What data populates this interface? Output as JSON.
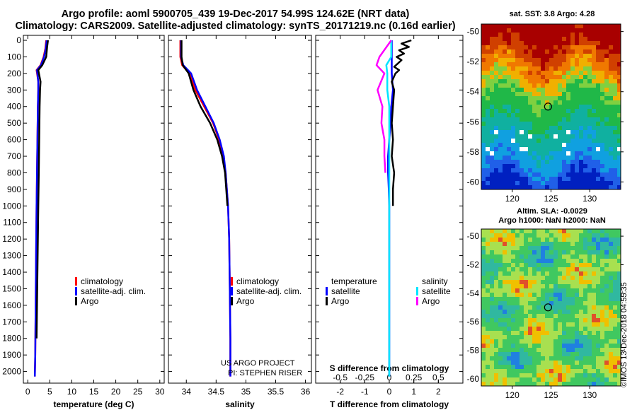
{
  "header": {
    "line1": "Argo profile: aoml 5900705_439 19-Dec-2017 54.99S 124.62E (NRT data)",
    "line2": "Climatology: CARS2009. Satellite-adjusted climatology: synTS_20171219.nc (0.16d earlier)"
  },
  "colors": {
    "climatology": "#ff0000",
    "satellite": "#0000ff",
    "argo": "#000000",
    "sat_salinity": "#00e5ff",
    "argo_salinity": "#ff00ff"
  },
  "legend": {
    "climatology": "climatology",
    "satellite": "satellite-adj. clim.",
    "argo": "Argo",
    "temperature": "temperature",
    "salinity": "salinity",
    "satellite_short": "satellite",
    "argo_short": "Argo"
  },
  "credits": {
    "project": "US ARGO PROJECT",
    "pi": "PI: STEPHEN RISER",
    "imos": "©IMOS 13-Dec-2018 04:55:35"
  },
  "chart_data": [
    {
      "type": "line",
      "title": "",
      "xlabel": "temperature (deg C)",
      "ylabel": "",
      "xlim": [
        -1,
        31
      ],
      "ylim": [
        2070,
        -30
      ],
      "xticks": [
        0,
        5,
        10,
        15,
        20,
        25,
        30
      ],
      "yticks": [
        0,
        100,
        200,
        300,
        400,
        500,
        600,
        700,
        800,
        900,
        1000,
        1100,
        1200,
        1300,
        1400,
        1500,
        1600,
        1700,
        1800,
        1900,
        2000
      ],
      "series": [
        {
          "name": "climatology",
          "color": "#ff0000",
          "x": [
            4.2,
            4.0,
            3.6,
            2.9,
            2.0,
            2.4,
            2.4,
            2.3,
            2.2,
            2.1,
            2.0,
            1.9,
            1.8,
            1.7,
            1.6
          ],
          "y": [
            0,
            50,
            100,
            150,
            180,
            250,
            300,
            400,
            600,
            800,
            1000,
            1300,
            1600,
            1900,
            2030
          ]
        },
        {
          "name": "satellite-adj. clim.",
          "color": "#0000ff",
          "x": [
            4.3,
            4.1,
            3.7,
            3.0,
            2.1,
            2.4,
            2.4,
            2.3,
            2.2,
            2.1,
            2.0,
            1.9,
            1.8,
            1.7,
            1.6
          ],
          "y": [
            0,
            50,
            100,
            150,
            180,
            250,
            300,
            400,
            600,
            800,
            1000,
            1300,
            1600,
            1900,
            2030
          ]
        },
        {
          "name": "Argo",
          "color": "#000000",
          "x": [
            4.6,
            4.4,
            4.2,
            3.3,
            2.4,
            2.9,
            2.8,
            2.7,
            2.6,
            2.5,
            2.4,
            2.3,
            2.2,
            2.1,
            2.0
          ],
          "y": [
            0,
            40,
            100,
            150,
            180,
            250,
            300,
            400,
            600,
            800,
            1000,
            1200,
            1400,
            1600,
            1800
          ]
        }
      ]
    },
    {
      "type": "line",
      "title": "",
      "xlabel": "salinity",
      "ylabel": "",
      "xlim": [
        33.7,
        36.1
      ],
      "ylim": [
        2070,
        -30
      ],
      "xticks": [
        34,
        34.5,
        35,
        35.5,
        36
      ],
      "series": [
        {
          "name": "climatology",
          "color": "#ff0000",
          "x": [
            33.9,
            33.9,
            33.93,
            34.05,
            34.15,
            34.3,
            34.45,
            34.55,
            34.62,
            34.66,
            34.7,
            34.72,
            34.73,
            34.74,
            34.74
          ],
          "y": [
            0,
            100,
            150,
            200,
            300,
            400,
            500,
            600,
            700,
            800,
            1000,
            1200,
            1500,
            1800,
            2030
          ]
        },
        {
          "name": "satellite-adj. clim.",
          "color": "#0000ff",
          "x": [
            33.91,
            33.91,
            33.95,
            34.08,
            34.18,
            34.32,
            34.46,
            34.56,
            34.63,
            34.66,
            34.7,
            34.72,
            34.73,
            34.74,
            34.74
          ],
          "y": [
            0,
            100,
            150,
            200,
            300,
            400,
            500,
            600,
            700,
            800,
            1000,
            1200,
            1500,
            1800,
            2030
          ]
        },
        {
          "name": "Argo",
          "color": "#000000",
          "x": [
            33.92,
            33.92,
            33.94,
            34.04,
            34.12,
            34.24,
            34.4,
            34.52,
            34.6,
            34.65,
            34.69
          ],
          "y": [
            0,
            100,
            150,
            200,
            300,
            400,
            500,
            600,
            700,
            800,
            1000
          ]
        }
      ]
    },
    {
      "type": "line",
      "title": "",
      "xlabel": "T difference from climatology",
      "x2label": "S difference from climatology",
      "xlim": [
        -3,
        3
      ],
      "ylim": [
        2070,
        -30
      ],
      "xticks": [
        -2,
        -1,
        0,
        1,
        2
      ],
      "x2lim": [
        -0.75,
        0.75
      ],
      "x2ticks": [
        -0.5,
        -0.25,
        0,
        0.25,
        0.5
      ],
      "series": [
        {
          "name": "temperature satellite",
          "color": "#0000ff",
          "axis": "T",
          "x": [
            0.1,
            0.1,
            0.1,
            0.15,
            0.08,
            0.05,
            0.0,
            -0.05,
            -0.05,
            -0.02,
            0.0,
            0.0,
            0.0,
            0.0
          ],
          "y": [
            0,
            100,
            200,
            300,
            400,
            500,
            600,
            700,
            800,
            900,
            1000,
            1200,
            1600,
            2030
          ]
        },
        {
          "name": "temperature Argo",
          "color": "#000000",
          "axis": "T",
          "x": [
            0.9,
            0.5,
            0.8,
            0.4,
            0.6,
            0.3,
            0.5,
            0.35,
            0.2,
            0.4,
            0.25,
            0.1,
            0.2,
            0.15,
            0.1,
            0.15,
            0.1,
            0.2,
            0.15,
            0.15
          ],
          "y": [
            0,
            20,
            40,
            60,
            80,
            100,
            120,
            140,
            160,
            180,
            200,
            250,
            300,
            400,
            500,
            600,
            700,
            800,
            900,
            1000
          ]
        },
        {
          "name": "salinity satellite",
          "color": "#00e5ff",
          "axis": "S",
          "x": [
            0.02,
            0.02,
            -0.03,
            -0.02,
            -0.02,
            0.0,
            0.0,
            0.0,
            0.0,
            0.0
          ],
          "y": [
            0,
            100,
            150,
            200,
            300,
            400,
            600,
            900,
            1500,
            2030
          ]
        },
        {
          "name": "salinity Argo",
          "color": "#ff00ff",
          "axis": "S",
          "x": [
            0.02,
            -0.1,
            -0.13,
            -0.05,
            -0.12,
            -0.07,
            -0.08,
            -0.05,
            -0.05,
            -0.04
          ],
          "y": [
            0,
            100,
            150,
            200,
            300,
            400,
            500,
            600,
            700,
            800
          ]
        }
      ]
    },
    {
      "type": "heatmap",
      "title": "sat. SST: 3.8 Argo: 4.28",
      "xlim": [
        116,
        134
      ],
      "ylim": [
        -60.5,
        -49.5
      ],
      "xticks": [
        120,
        125,
        130
      ],
      "yticks": [
        -50,
        -52,
        -54,
        -56,
        -58,
        -60
      ],
      "marker": {
        "lon": 124.62,
        "lat": -54.99
      }
    },
    {
      "type": "heatmap",
      "title": "Altim. SLA: -0.0029",
      "subtitle": "Argo h1000: NaN h2000: NaN",
      "xlim": [
        116,
        134
      ],
      "ylim": [
        -60.5,
        -49.5
      ],
      "xticks": [
        120,
        125,
        130
      ],
      "yticks": [
        -50,
        -52,
        -54,
        -56,
        -58,
        -60
      ],
      "marker": {
        "lon": 124.62,
        "lat": -54.99
      }
    }
  ]
}
